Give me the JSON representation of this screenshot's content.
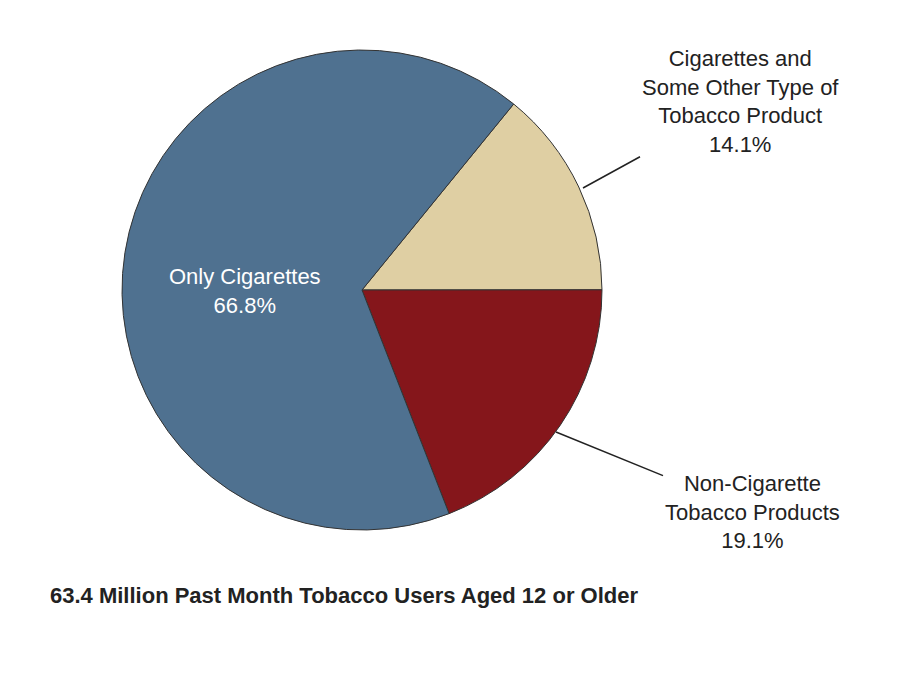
{
  "chart_data": {
    "type": "pie",
    "title": "63.4 Million Past Month Tobacco Users Aged 12 or Older",
    "categories": [
      "Cigarettes and Some Other Type of Tobacco Product",
      "Non-Cigarette Tobacco Products",
      "Only Cigarettes"
    ],
    "values": [
      14.1,
      19.1,
      66.8
    ],
    "value_labels": [
      "14.1%",
      "19.1%",
      "66.8%"
    ],
    "colors": [
      "#dfcfa3",
      "#85161b",
      "#4f7190"
    ],
    "data_labels": true
  }
}
